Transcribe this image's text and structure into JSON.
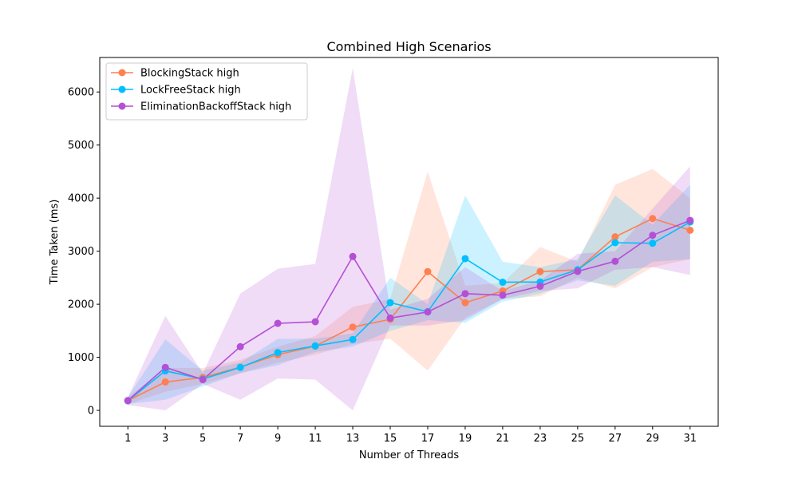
{
  "chart_data": {
    "type": "line",
    "title": "Combined High Scenarios",
    "xlabel": "Number of Threads",
    "ylabel": "Time Taken (ms)",
    "x": [
      1,
      3,
      5,
      7,
      9,
      11,
      13,
      15,
      17,
      19,
      21,
      23,
      25,
      27,
      29,
      31
    ],
    "xlim": [
      -0.5,
      32.5
    ],
    "ylim": [
      -300,
      6650
    ],
    "yticks": [
      0,
      1000,
      2000,
      3000,
      4000,
      5000,
      6000
    ],
    "grid": false,
    "legend_position": "top-left",
    "series": [
      {
        "name": "BlockingStack high",
        "color": "#ff7f50",
        "values": [
          185,
          535,
          620,
          815,
          1050,
          1210,
          1570,
          1715,
          2615,
          2030,
          2250,
          2615,
          2650,
          3270,
          3615,
          3395
        ],
        "band_low": [
          120,
          350,
          500,
          700,
          900,
          1050,
          1250,
          1350,
          750,
          1750,
          2100,
          2150,
          2500,
          2300,
          2700,
          2850
        ],
        "band_high": [
          250,
          800,
          800,
          950,
          1200,
          1400,
          1950,
          2100,
          4500,
          2350,
          2400,
          3080,
          2800,
          4250,
          4550,
          4000
        ]
      },
      {
        "name": "LockFreeStack high",
        "color": "#00bfff",
        "values": [
          180,
          745,
          590,
          810,
          1090,
          1215,
          1335,
          2030,
          1860,
          2860,
          2415,
          2420,
          2650,
          3160,
          3150,
          3550
        ],
        "band_low": [
          120,
          200,
          450,
          700,
          850,
          1100,
          1200,
          1500,
          1700,
          1650,
          2050,
          2200,
          2450,
          2350,
          2800,
          2850
        ],
        "band_high": [
          250,
          1340,
          750,
          900,
          1350,
          1350,
          1450,
          2500,
          2000,
          4050,
          2800,
          2700,
          2850,
          4050,
          3500,
          4250
        ]
      },
      {
        "name": "EliminationBackoffStack high",
        "color": "#b44fd6",
        "values": [
          185,
          810,
          580,
          1200,
          1640,
          1670,
          2900,
          1740,
          1855,
          2200,
          2170,
          2340,
          2620,
          2810,
          3300,
          3580
        ],
        "band_low": [
          100,
          0,
          500,
          200,
          600,
          580,
          0,
          1600,
          1600,
          1700,
          2100,
          2250,
          2300,
          2650,
          2700,
          2550
        ],
        "band_high": [
          250,
          1780,
          700,
          2200,
          2670,
          2760,
          6450,
          1900,
          2100,
          2700,
          2250,
          2450,
          2950,
          3000,
          3800,
          4600
        ]
      }
    ]
  }
}
